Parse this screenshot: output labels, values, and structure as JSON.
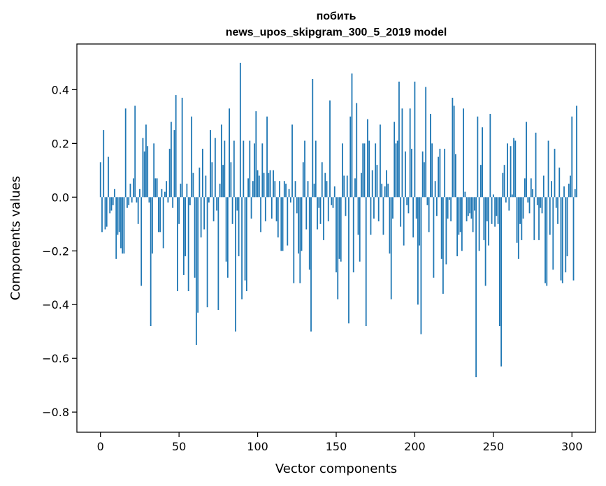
{
  "chart_data": {
    "type": "bar",
    "title": "побить",
    "subtitle": "news_upos_skipgram_300_5_2019 model",
    "xlabel": "Vector components",
    "ylabel": "Components values",
    "xlim": [
      -15,
      315
    ],
    "ylim": [
      -0.875,
      0.57
    ],
    "xticks": [
      0,
      50,
      100,
      150,
      200,
      250,
      300
    ],
    "yticks": [
      -0.8,
      -0.6,
      -0.4,
      -0.2,
      0.0,
      0.2,
      0.4
    ],
    "ytick_labels": [
      "−0.8",
      "−0.6",
      "−0.4",
      "−0.2",
      "0.0",
      "0.2",
      "0.4"
    ],
    "grid": false,
    "legend": "none",
    "color": "#1f77b4",
    "x_start": 0,
    "values": [
      0.13,
      -0.13,
      0.25,
      -0.12,
      -0.11,
      0.15,
      -0.06,
      -0.05,
      -0.03,
      0.03,
      -0.23,
      -0.14,
      -0.13,
      -0.19,
      -0.21,
      -0.21,
      0.33,
      -0.04,
      -0.03,
      0.05,
      -0.02,
      0.07,
      0.34,
      -0.02,
      -0.1,
      0.03,
      -0.33,
      0.22,
      0.17,
      0.27,
      0.19,
      -0.02,
      -0.48,
      -0.21,
      0.2,
      0.07,
      0.07,
      -0.13,
      -0.13,
      0.03,
      -0.19,
      0.02,
      0.06,
      -0.02,
      0.18,
      0.28,
      -0.04,
      0.25,
      0.38,
      -0.35,
      -0.1,
      0.05,
      0.37,
      -0.29,
      -0.22,
      0.05,
      -0.35,
      -0.03,
      0.3,
      0.09,
      -0.3,
      -0.55,
      -0.43,
      0.11,
      -0.15,
      0.18,
      -0.12,
      0.08,
      -0.41,
      -0.02,
      0.25,
      0.13,
      -0.09,
      0.22,
      -0.05,
      -0.42,
      0.05,
      0.27,
      0.12,
      0.21,
      -0.24,
      -0.3,
      0.33,
      0.13,
      -0.1,
      0.21,
      -0.5,
      -0.05,
      -0.22,
      0.5,
      -0.38,
      0.21,
      -0.31,
      -0.35,
      0.07,
      0.21,
      -0.08,
      0.06,
      0.2,
      0.32,
      0.1,
      0.08,
      -0.13,
      0.2,
      0.09,
      -0.09,
      0.3,
      0.09,
      0.1,
      -0.08,
      0.1,
      0.06,
      -0.09,
      -0.15,
      0.06,
      -0.2,
      -0.2,
      0.06,
      0.05,
      -0.18,
      0.03,
      -0.02,
      0.27,
      -0.32,
      0.06,
      -0.06,
      -0.21,
      -0.32,
      -0.2,
      0.13,
      0.21,
      -0.12,
      0.06,
      -0.27,
      -0.5,
      0.44,
      0.05,
      0.21,
      -0.12,
      -0.04,
      -0.1,
      0.13,
      -0.16,
      0.09,
      0.06,
      -0.09,
      0.36,
      -0.03,
      -0.04,
      0.04,
      -0.28,
      -0.38,
      -0.23,
      -0.24,
      0.2,
      0.08,
      -0.07,
      0.08,
      -0.47,
      0.3,
      0.46,
      -0.28,
      0.07,
      0.35,
      -0.14,
      -0.24,
      0.09,
      0.2,
      0.2,
      -0.48,
      0.29,
      0.21,
      -0.14,
      0.1,
      -0.08,
      0.2,
      0.12,
      -0.09,
      0.27,
      0.05,
      -0.14,
      0.04,
      0.1,
      0.05,
      -0.21,
      -0.38,
      -0.08,
      0.28,
      0.2,
      0.21,
      0.43,
      -0.11,
      0.33,
      -0.18,
      0.17,
      -0.03,
      -0.06,
      0.33,
      0.18,
      -0.15,
      0.43,
      -0.08,
      -0.4,
      -0.18,
      -0.51,
      0.17,
      0.13,
      0.41,
      -0.03,
      -0.13,
      0.31,
      0.2,
      -0.3,
      0.06,
      -0.07,
      0.15,
      0.18,
      -0.23,
      -0.36,
      0.18,
      -0.25,
      -0.08,
      -0.01,
      -0.09,
      0.37,
      0.34,
      0.16,
      -0.22,
      -0.14,
      -0.13,
      -0.2,
      0.33,
      0.02,
      -0.09,
      -0.07,
      -0.06,
      -0.08,
      -0.13,
      -0.05,
      -0.67,
      0.3,
      -0.2,
      0.12,
      0.26,
      -0.16,
      -0.33,
      -0.09,
      -0.18,
      0.31,
      -0.1,
      0.01,
      -0.11,
      -0.07,
      -0.1,
      -0.48,
      -0.63,
      0.09,
      0.12,
      -0.02,
      0.2,
      -0.05,
      0.19,
      0.01,
      0.22,
      0.21,
      -0.17,
      -0.23,
      -0.1,
      -0.16,
      -0.08,
      0.07,
      0.28,
      -0.02,
      -0.06,
      0.07,
      0.03,
      -0.16,
      0.24,
      -0.03,
      -0.16,
      -0.04,
      -0.06,
      0.08,
      -0.32,
      -0.33,
      0.21,
      -0.14,
      0.06,
      -0.27,
      0.18,
      -0.04,
      -0.1,
      0.11,
      -0.31,
      -0.32,
      0.04,
      -0.28,
      -0.22,
      0.05,
      0.08,
      0.3,
      -0.31,
      0.03,
      0.34
    ]
  }
}
